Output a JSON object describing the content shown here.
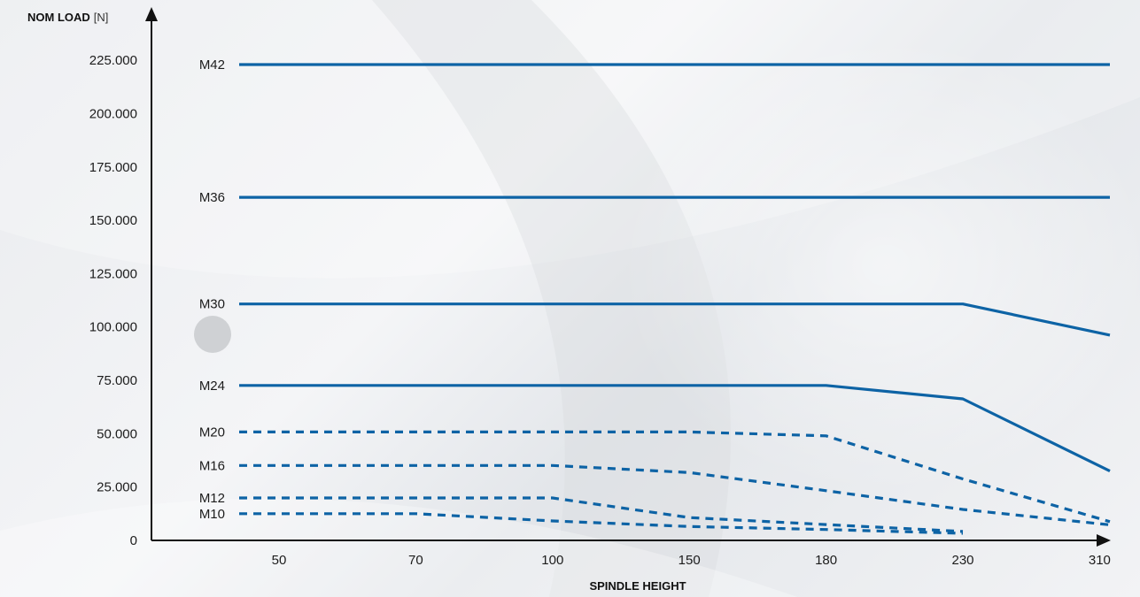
{
  "chart_data": {
    "type": "line",
    "ylabel": "NOM LOAD",
    "yunit": "[N]",
    "xlabel": "SPINDLE HEIGHT",
    "categories": [
      "50",
      "70",
      "100",
      "150",
      "180",
      "230",
      "310"
    ],
    "yticks": [
      "0",
      "25.000",
      "50.000",
      "75.000",
      "100.000",
      "125.000",
      "150.000",
      "175.000",
      "200.000",
      "225.000"
    ],
    "ylim": [
      0,
      225000
    ],
    "line_color": "#0d63a5",
    "series": [
      {
        "name": "M42",
        "style": "solid",
        "points": [
          [
            -0.5,
            223000
          ],
          [
            6.0,
            223000
          ]
        ]
      },
      {
        "name": "M36",
        "style": "solid",
        "points": [
          [
            -0.5,
            160800
          ],
          [
            6.0,
            160800
          ]
        ]
      },
      {
        "name": "M30",
        "style": "solid",
        "points": [
          [
            -0.5,
            110800
          ],
          [
            5.0,
            110800
          ],
          [
            6.0,
            96200
          ]
        ]
      },
      {
        "name": "M24",
        "style": "solid",
        "points": [
          [
            -0.5,
            72600
          ],
          [
            4.0,
            72600
          ],
          [
            5.0,
            66300
          ],
          [
            6.0,
            32500
          ]
        ]
      },
      {
        "name": "M20",
        "style": "dashed",
        "points": [
          [
            -0.5,
            50800
          ],
          [
            3.0,
            50800
          ],
          [
            4.0,
            49000
          ],
          [
            5.0,
            28800
          ],
          [
            6.0,
            8800
          ]
        ]
      },
      {
        "name": "M16",
        "style": "dashed",
        "points": [
          [
            -0.5,
            35100
          ],
          [
            2.0,
            35100
          ],
          [
            3.0,
            31800
          ],
          [
            4.0,
            23300
          ],
          [
            5.0,
            14500
          ],
          [
            6.0,
            7300
          ]
        ]
      },
      {
        "name": "M12",
        "style": "dashed",
        "points": [
          [
            -0.5,
            19900
          ],
          [
            2.0,
            19900
          ],
          [
            3.0,
            10700
          ],
          [
            4.0,
            7400
          ],
          [
            5.0,
            4200
          ]
        ]
      },
      {
        "name": "M10",
        "style": "dashed",
        "points": [
          [
            -0.5,
            12500
          ],
          [
            1.0,
            12500
          ],
          [
            2.0,
            9100
          ],
          [
            3.0,
            6500
          ],
          [
            4.0,
            5100
          ],
          [
            5.0,
            3300
          ]
        ]
      }
    ]
  }
}
